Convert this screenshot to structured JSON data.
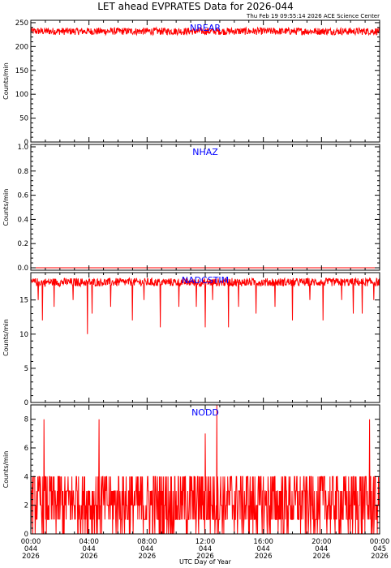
{
  "chart_data": {
    "type": "line",
    "title": "LET ahead EVPRATES Data for 2026-044",
    "timestamp": "Thu Feb 19 09:55:14 2026 ACE Science Center",
    "xlabel": "UTC Day of Year",
    "x_ticks": [
      {
        "time": "00:00",
        "day": "044",
        "year": "2026"
      },
      {
        "time": "04:00",
        "day": "044",
        "year": "2026"
      },
      {
        "time": "08:00",
        "day": "044",
        "year": "2026"
      },
      {
        "time": "12:00",
        "day": "044",
        "year": "2026"
      },
      {
        "time": "16:00",
        "day": "044",
        "year": "2026"
      },
      {
        "time": "20:00",
        "day": "044",
        "year": "2026"
      },
      {
        "time": "00:00",
        "day": "045",
        "year": "2026"
      }
    ],
    "xlim_hours": [
      0,
      24
    ],
    "series_color": "#ff0000",
    "label_color": "#0000ff",
    "panels": [
      {
        "name": "NREAR",
        "ylabel": "Counts/min",
        "ylim": [
          0,
          255
        ],
        "yticks": [
          "0",
          "50",
          "100",
          "150",
          "200",
          "250"
        ],
        "ytick_values": [
          0,
          50,
          100,
          150,
          200,
          250
        ],
        "mean_value": 232,
        "noise": "low",
        "spikes": []
      },
      {
        "name": "NHAZ",
        "ylabel": "Counts/min",
        "ylim": [
          -0.02,
          1.02
        ],
        "yticks": [
          "0.0",
          "0.2",
          "0.4",
          "0.6",
          "0.8",
          "1.0"
        ],
        "ytick_values": [
          0,
          0.2,
          0.4,
          0.6,
          0.8,
          1.0
        ],
        "mean_value": 0,
        "noise": "none",
        "spikes": []
      },
      {
        "name": "NADCSTIM",
        "ylabel": "Counts/min",
        "ylim": [
          0,
          19
        ],
        "yticks": [
          "0",
          "5",
          "10",
          "15"
        ],
        "ytick_values": [
          0,
          5,
          10,
          15
        ],
        "mean_value": 17.6,
        "noise": "low",
        "spikes": [
          {
            "hour": 0.5,
            "value": 15
          },
          {
            "hour": 0.8,
            "value": 12
          },
          {
            "hour": 1.6,
            "value": 14
          },
          {
            "hour": 2.9,
            "value": 15
          },
          {
            "hour": 3.9,
            "value": 10
          },
          {
            "hour": 4.2,
            "value": 13
          },
          {
            "hour": 5.5,
            "value": 14
          },
          {
            "hour": 7.0,
            "value": 12
          },
          {
            "hour": 7.8,
            "value": 15
          },
          {
            "hour": 8.9,
            "value": 11
          },
          {
            "hour": 10.2,
            "value": 14
          },
          {
            "hour": 11.4,
            "value": 14
          },
          {
            "hour": 12.0,
            "value": 11
          },
          {
            "hour": 12.5,
            "value": 15
          },
          {
            "hour": 13.6,
            "value": 11
          },
          {
            "hour": 14.3,
            "value": 14
          },
          {
            "hour": 15.5,
            "value": 13
          },
          {
            "hour": 16.8,
            "value": 14
          },
          {
            "hour": 18.0,
            "value": 12
          },
          {
            "hour": 19.2,
            "value": 15
          },
          {
            "hour": 20.1,
            "value": 12
          },
          {
            "hour": 21.4,
            "value": 15
          },
          {
            "hour": 22.2,
            "value": 13
          },
          {
            "hour": 22.8,
            "value": 13
          },
          {
            "hour": 23.6,
            "value": 15
          }
        ]
      },
      {
        "name": "NODD",
        "ylabel": "Counts/min",
        "ylim": [
          0,
          9
        ],
        "yticks": [
          "0",
          "2",
          "4",
          "6",
          "8"
        ],
        "ytick_values": [
          0,
          2,
          4,
          6,
          8
        ],
        "mean_value": 2.2,
        "noise": "high",
        "spikes": [
          {
            "hour": 0.9,
            "value": 8
          },
          {
            "hour": 4.7,
            "value": 8
          },
          {
            "hour": 12.0,
            "value": 7
          },
          {
            "hour": 12.8,
            "value": 9
          },
          {
            "hour": 23.3,
            "value": 8
          }
        ]
      }
    ]
  }
}
